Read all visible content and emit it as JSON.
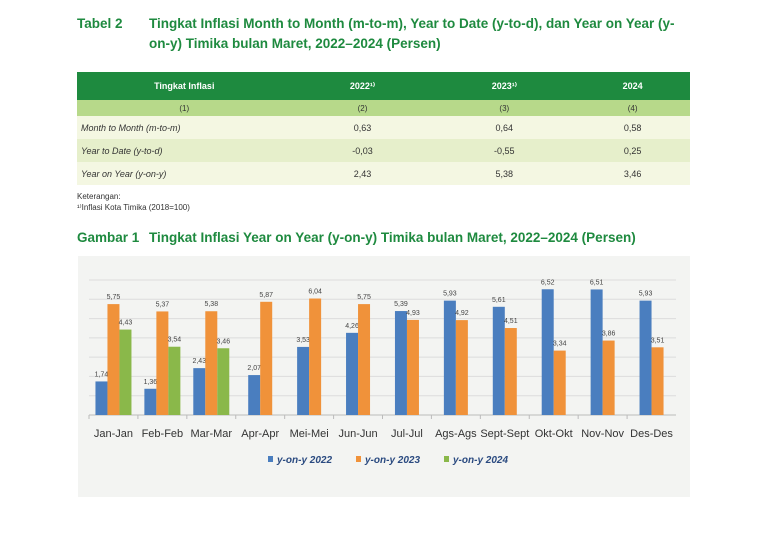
{
  "table": {
    "label": "Tabel 2",
    "title": "Tingkat Inflasi Month to Month (m-to-m), Year to Date (y-to-d), dan Year on Year (y-on-y) Timika bulan Maret, 2022–2024 (Persen)",
    "headers": [
      "Tingkat Inflasi",
      "2022¹⁾",
      "2023¹⁾",
      "2024"
    ],
    "col_numbers": [
      "(1)",
      "(2)",
      "(3)",
      "(4)"
    ],
    "rows": [
      [
        "Month to Month (m-to-m)",
        "0,63",
        "0,64",
        "0,58"
      ],
      [
        "Year to Date (y-to-d)",
        "-0,03",
        "-0,55",
        "0,25"
      ],
      [
        "Year on Year (y-on-y)",
        "2,43",
        "5,38",
        "3,46"
      ]
    ],
    "note_label": "Keterangan:",
    "note": "¹⁾Inflasi Kota Timika (2018=100)"
  },
  "figure": {
    "label": "Gambar 1",
    "title": "Tingkat Inflasi Year on Year (y-on-y) Timika bulan Maret, 2022–2024 (Persen)"
  },
  "chart_data": {
    "type": "bar",
    "categories": [
      "Jan-Jan",
      "Feb-Feb",
      "Mar-Mar",
      "Apr-Apr",
      "Mei-Mei",
      "Jun-Jun",
      "Jul-Jul",
      "Ags-Ags",
      "Sept-Sept",
      "Okt-Okt",
      "Nov-Nov",
      "Des-Des"
    ],
    "series": [
      {
        "name": "y-on-y 2022",
        "color": "#4a7ebf",
        "values": [
          1.74,
          1.36,
          2.43,
          2.07,
          3.53,
          4.26,
          5.39,
          5.93,
          5.61,
          6.52,
          6.51,
          5.93
        ]
      },
      {
        "name": "y-on-y 2023",
        "color": "#f0923a",
        "values": [
          5.75,
          5.37,
          5.38,
          5.87,
          6.04,
          5.75,
          4.93,
          4.92,
          4.51,
          3.34,
          3.86,
          3.51
        ]
      },
      {
        "name": "y-on-y 2024",
        "color": "#8ab84a",
        "values": [
          4.43,
          3.54,
          3.46,
          null,
          null,
          null,
          null,
          null,
          null,
          null,
          null,
          null
        ]
      }
    ],
    "ylim": [
      0,
      7
    ],
    "grid": true,
    "legend": "bottom"
  }
}
